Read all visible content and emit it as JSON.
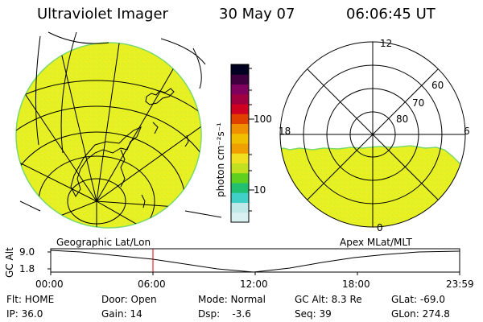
{
  "header": {
    "instrument": "Ultraviolet Imager",
    "date": "30 May 07",
    "time": "06:06:45 UT"
  },
  "left_panel": {
    "caption": "Geographic Lat/Lon"
  },
  "right_panel": {
    "caption": "Apex MLat/MLT",
    "mlt_labels": [
      "12",
      "18",
      "6",
      "0"
    ],
    "mlat_labels": [
      "60",
      "70",
      "80"
    ]
  },
  "colorbar": {
    "unit_label": "photon cm⁻²s⁻¹",
    "tick_labels": [
      "100",
      "10"
    ],
    "scale": "log",
    "colors": [
      "#d8f0f0",
      "#bfe8e8",
      "#40d0c8",
      "#20c070",
      "#60d020",
      "#c0e020",
      "#f0e020",
      "#f0a000",
      "#f0c000",
      "#f09000",
      "#e04000",
      "#d00020",
      "#a00040",
      "#800060",
      "#400040",
      "#000020"
    ]
  },
  "timeline": {
    "y_axis_label": "GC Alt",
    "y_ticks": [
      "9.0",
      "1.8"
    ],
    "x_ticks": [
      "00:00",
      "06:00",
      "12:00",
      "18:00",
      "23:59"
    ],
    "marker_color": "#e00000"
  },
  "status": {
    "row1": {
      "flt": "Flt: HOME",
      "door": "Door: Open",
      "mode": "Mode: Normal",
      "gc_alt": "GC Alt: 8.3 Re",
      "glat": "GLat: -69.0"
    },
    "row2": {
      "ip": "IP: 36.0",
      "gain": "Gain: 14",
      "dsp": "Dsp:    -3.6",
      "seq": "Seq: 39",
      "glon": "GLon: 274.8"
    }
  },
  "colors": {
    "emission": "#e6f022",
    "emission_edge": "#7cd86a",
    "line": "#000000"
  }
}
